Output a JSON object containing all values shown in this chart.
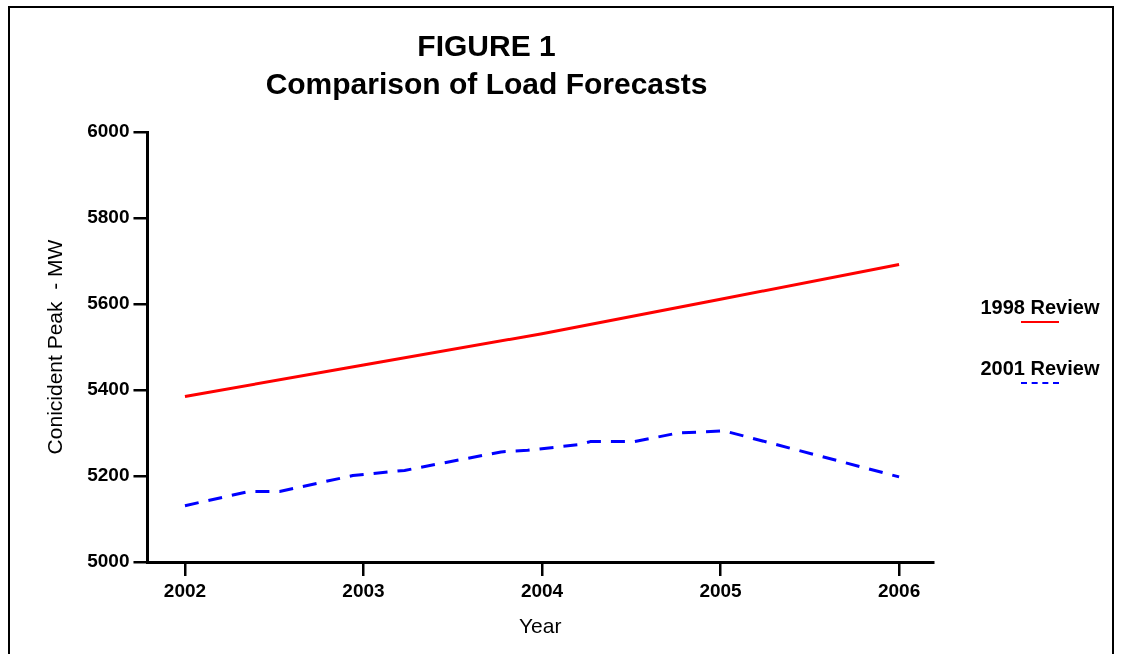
{
  "chart_data": {
    "type": "line",
    "title": "FIGURE 1",
    "subtitle": "Comparison of Load Forecasts",
    "xlabel": "Year",
    "ylabel": "Conicident Peak  - MW",
    "xlim": [
      2001.79,
      2006.19
    ],
    "xticks": [
      2002,
      2003,
      2004,
      2005,
      2006
    ],
    "ylim": [
      5000,
      6000
    ],
    "yticks": [
      5000,
      5200,
      5400,
      5600,
      5800,
      6000
    ],
    "grid": false,
    "legend": "right",
    "marker": "none",
    "series": [
      {
        "name": "1998 Review",
        "color": "#ff0000",
        "line_style": "solid",
        "x": [
          2002,
          2003,
          2004,
          2005,
          2006
        ],
        "values": [
          5385,
          5458,
          5531,
          5611,
          5692
        ]
      },
      {
        "name": "2001 Review",
        "color": "#0000ff",
        "line_style": "dashed",
        "x": [
          2002,
          2002.36,
          2002.53,
          2002.94,
          2003.23,
          2003.77,
          2003.92,
          2004.21,
          2004.27,
          2004.52,
          2004.76,
          2005.02,
          2006
        ],
        "values": [
          5131,
          5164,
          5164,
          5201,
          5213,
          5256,
          5260,
          5273,
          5280,
          5280,
          5300,
          5305,
          5198
        ]
      }
    ]
  }
}
